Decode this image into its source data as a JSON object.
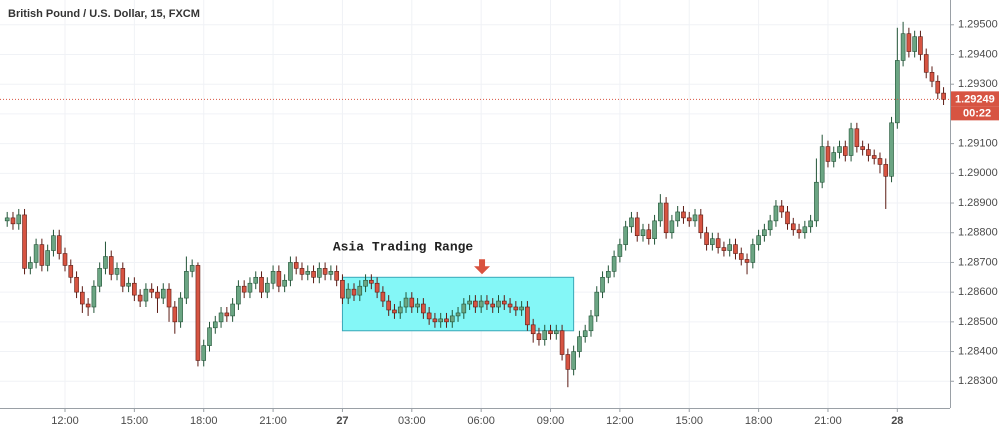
{
  "chart_data": {
    "type": "candlestick",
    "title": "British Pound / U.S. Dollar, 15, FXCM",
    "up_color": "#6ba583",
    "down_color": "#d75442",
    "up_wick": "#225437",
    "down_wick": "#5b1a13",
    "grid": true,
    "categories": [
      null,
      null,
      null,
      null,
      null,
      null,
      null,
      null,
      null,
      null,
      "12:00",
      null,
      null,
      null,
      null,
      null,
      null,
      null,
      null,
      null,
      null,
      null,
      "15:00",
      null,
      null,
      null,
      null,
      null,
      null,
      null,
      null,
      null,
      null,
      null,
      "18:00",
      null,
      null,
      null,
      null,
      null,
      null,
      null,
      null,
      null,
      null,
      null,
      "21:00",
      null,
      null,
      null,
      null,
      null,
      null,
      null,
      null,
      null,
      null,
      null,
      "27",
      null,
      null,
      null,
      null,
      null,
      null,
      null,
      null,
      null,
      null,
      null,
      "03:00",
      null,
      null,
      null,
      null,
      null,
      null,
      null,
      null,
      null,
      null,
      null,
      "06:00",
      null,
      null,
      null,
      null,
      null,
      null,
      null,
      null,
      null,
      null,
      null,
      "09:00",
      null,
      null,
      null,
      null,
      null,
      null,
      null,
      null,
      null,
      null,
      null,
      "12:00",
      null,
      null,
      null,
      null,
      null,
      null,
      null,
      null,
      null,
      null,
      null,
      "15:00",
      null,
      null,
      null,
      null,
      null,
      null,
      null,
      null,
      null,
      null,
      null,
      "18:00",
      null,
      null,
      null,
      null,
      null,
      null,
      null,
      null,
      null,
      null,
      null,
      "21:00",
      null,
      null,
      null,
      null,
      null,
      null,
      null,
      null,
      null,
      null,
      null,
      "28",
      null,
      null,
      null,
      null,
      null,
      null,
      null,
      null
    ],
    "open": [
      1.2884,
      1.2885,
      1.2883,
      1.2886,
      1.2868,
      1.287,
      1.2876,
      1.2869,
      1.2874,
      1.2879,
      1.2873,
      1.2869,
      1.2865,
      1.286,
      1.2856,
      1.2855,
      1.2862,
      1.2868,
      1.2872,
      1.2866,
      1.2868,
      1.2862,
      1.2863,
      1.2859,
      1.2857,
      1.2861,
      1.286,
      1.2858,
      1.2861,
      1.2855,
      1.285,
      1.2858,
      1.2867,
      1.2869,
      1.2837,
      1.2842,
      1.2848,
      1.285,
      1.2853,
      1.2852,
      1.2856,
      1.2862,
      1.286,
      1.2863,
      1.2865,
      1.286,
      1.2863,
      1.2867,
      1.2862,
      1.2864,
      1.287,
      1.2868,
      1.2866,
      1.2867,
      1.2865,
      1.2868,
      1.2866,
      1.2867,
      1.2864,
      1.2858,
      1.2861,
      1.2859,
      1.2862,
      1.2864,
      1.2863,
      1.286,
      1.2857,
      1.2854,
      1.2853,
      1.2855,
      1.2858,
      1.2855,
      1.2856,
      1.2853,
      1.2851,
      1.285,
      1.2851,
      1.285,
      1.2852,
      1.2853,
      1.2856,
      1.2857,
      1.2855,
      1.2857,
      1.2856,
      1.2855,
      1.2857,
      1.2856,
      1.2855,
      1.2854,
      1.2855,
      1.2849,
      1.2846,
      1.2844,
      1.2847,
      1.2846,
      1.2847,
      1.2839,
      1.2834,
      1.284,
      1.2845,
      1.2847,
      1.2852,
      1.286,
      1.2865,
      1.2867,
      1.2872,
      1.2876,
      1.2882,
      1.2885,
      1.2879,
      1.2881,
      1.2878,
      1.2884,
      1.289,
      1.288,
      1.2884,
      1.2887,
      1.2885,
      1.2884,
      1.2886,
      1.288,
      1.2876,
      1.2878,
      1.2875,
      1.2874,
      1.2876,
      1.2873,
      1.2871,
      1.287,
      1.2876,
      1.2879,
      1.2881,
      1.2884,
      1.2889,
      1.2887,
      1.2883,
      1.2881,
      1.288,
      1.2882,
      1.2884,
      1.2897,
      1.2909,
      1.2904,
      1.2907,
      1.2909,
      1.2906,
      1.2915,
      1.2909,
      1.2908,
      1.2906,
      1.2905,
      1.2903,
      1.2899,
      1.2917,
      1.2938,
      1.2947,
      1.2941,
      1.2946,
      1.294,
      1.2934,
      1.2931,
      1.2927
    ],
    "high": [
      1.2887,
      1.2887,
      1.2888,
      1.2888,
      1.2872,
      1.2878,
      1.2878,
      1.2876,
      1.2881,
      1.2881,
      1.2875,
      1.2871,
      1.2867,
      1.2862,
      1.2858,
      1.2864,
      1.287,
      1.2877,
      1.2874,
      1.287,
      1.287,
      1.2865,
      1.2865,
      1.2861,
      1.2863,
      1.2863,
      1.2862,
      1.2863,
      1.2863,
      1.2857,
      1.286,
      1.2872,
      1.2871,
      1.287,
      1.2844,
      1.285,
      1.2852,
      1.2855,
      1.2855,
      1.2858,
      1.2864,
      1.2864,
      1.2865,
      1.2867,
      1.2867,
      1.2865,
      1.2869,
      1.2869,
      1.2866,
      1.2872,
      1.2872,
      1.287,
      1.2869,
      1.2869,
      1.287,
      1.287,
      1.2869,
      1.2869,
      1.2866,
      1.2863,
      1.2863,
      1.2864,
      1.2866,
      1.2866,
      1.2865,
      1.2862,
      1.2859,
      1.2856,
      1.2857,
      1.286,
      1.286,
      1.2858,
      1.2858,
      1.2855,
      1.2853,
      1.2853,
      1.2853,
      1.2854,
      1.2855,
      1.2858,
      1.2859,
      1.2859,
      1.2859,
      1.2859,
      1.2858,
      1.2859,
      1.2859,
      1.2858,
      1.2857,
      1.2857,
      1.2857,
      1.2851,
      1.2848,
      1.2849,
      1.2849,
      1.2849,
      1.2849,
      1.2841,
      1.2842,
      1.2847,
      1.2849,
      1.2854,
      1.2862,
      1.2867,
      1.2869,
      1.2874,
      1.2878,
      1.2884,
      1.2887,
      1.2887,
      1.2883,
      1.2883,
      1.2886,
      1.2893,
      1.2892,
      1.2886,
      1.2889,
      1.2889,
      1.2887,
      1.2888,
      1.2888,
      1.2882,
      1.288,
      1.288,
      1.2877,
      1.2878,
      1.2878,
      1.2875,
      1.2873,
      1.2878,
      1.2881,
      1.2883,
      1.2886,
      1.2891,
      1.2891,
      1.2889,
      1.2885,
      1.2883,
      1.2884,
      1.2886,
      1.2905,
      1.2913,
      1.2911,
      1.2909,
      1.2911,
      1.2911,
      1.2917,
      1.2917,
      1.2911,
      1.291,
      1.2908,
      1.2907,
      1.2905,
      1.2919,
      1.2949,
      1.2951,
      1.2949,
      1.2948,
      1.2948,
      1.2942,
      1.2936,
      1.2933,
      1.2929
    ],
    "low": [
      1.2882,
      1.2881,
      1.2881,
      1.2866,
      1.2866,
      1.2868,
      1.2867,
      1.2867,
      1.2872,
      1.2871,
      1.2867,
      1.2863,
      1.2858,
      1.2853,
      1.2852,
      1.2853,
      1.286,
      1.2866,
      1.2864,
      1.2864,
      1.286,
      1.286,
      1.2857,
      1.2855,
      1.2855,
      1.2858,
      1.2853,
      1.2856,
      1.285,
      1.2846,
      1.2848,
      1.2856,
      1.2865,
      1.2835,
      1.2835,
      1.284,
      1.2846,
      1.2848,
      1.285,
      1.285,
      1.2854,
      1.2858,
      1.2858,
      1.2861,
      1.2858,
      1.2858,
      1.2861,
      1.286,
      1.286,
      1.2862,
      1.2866,
      1.2864,
      1.2864,
      1.2863,
      1.2863,
      1.2864,
      1.2864,
      1.2862,
      1.2856,
      1.2856,
      1.2857,
      1.2857,
      1.286,
      1.2861,
      1.2858,
      1.2855,
      1.2852,
      1.2851,
      1.2851,
      1.2853,
      1.2853,
      1.2853,
      1.2851,
      1.2849,
      1.2848,
      1.2848,
      1.2848,
      1.2848,
      1.285,
      1.2851,
      1.2854,
      1.2853,
      1.2853,
      1.2854,
      1.2853,
      1.2853,
      1.2854,
      1.2853,
      1.2852,
      1.2852,
      1.2847,
      1.2843,
      1.2842,
      1.2842,
      1.2844,
      1.2844,
      1.2837,
      1.2828,
      1.2832,
      1.2838,
      1.2843,
      1.2845,
      1.285,
      1.2858,
      1.2863,
      1.2865,
      1.287,
      1.2874,
      1.288,
      1.2877,
      1.2877,
      1.2876,
      1.2876,
      1.2882,
      1.2878,
      1.2878,
      1.2882,
      1.2883,
      1.2882,
      1.2882,
      1.2878,
      1.2874,
      1.2874,
      1.2873,
      1.2872,
      1.2872,
      1.2871,
      1.2869,
      1.2866,
      1.2868,
      1.2874,
      1.2877,
      1.2879,
      1.2882,
      1.2885,
      1.2881,
      1.2879,
      1.2878,
      1.2878,
      1.288,
      1.2882,
      1.2895,
      1.2902,
      1.2902,
      1.2905,
      1.2904,
      1.2904,
      1.2907,
      1.2906,
      1.2904,
      1.2903,
      1.29,
      1.2888,
      1.2897,
      1.2915,
      1.2936,
      1.2939,
      1.2939,
      1.2938,
      1.2932,
      1.2929,
      1.2925,
      1.2923
    ],
    "close": [
      1.2885,
      1.2883,
      1.2886,
      1.2868,
      1.287,
      1.2876,
      1.2869,
      1.2874,
      1.2879,
      1.2873,
      1.2869,
      1.2865,
      1.286,
      1.2856,
      1.2855,
      1.2862,
      1.2868,
      1.2872,
      1.2866,
      1.2868,
      1.2862,
      1.2863,
      1.2859,
      1.2857,
      1.2861,
      1.286,
      1.2858,
      1.2861,
      1.2855,
      1.285,
      1.2858,
      1.2867,
      1.2869,
      1.2837,
      1.2842,
      1.2848,
      1.285,
      1.2853,
      1.2852,
      1.2856,
      1.2862,
      1.286,
      1.2863,
      1.2865,
      1.286,
      1.2863,
      1.2867,
      1.2862,
      1.2864,
      1.287,
      1.2868,
      1.2866,
      1.2867,
      1.2865,
      1.2868,
      1.2866,
      1.2867,
      1.2864,
      1.2858,
      1.2861,
      1.2859,
      1.2862,
      1.2864,
      1.2863,
      1.286,
      1.2857,
      1.2854,
      1.2853,
      1.2855,
      1.2858,
      1.2855,
      1.2856,
      1.2853,
      1.2851,
      1.285,
      1.2851,
      1.285,
      1.2852,
      1.2853,
      1.2856,
      1.2857,
      1.2855,
      1.2857,
      1.2856,
      1.2855,
      1.2857,
      1.2856,
      1.2855,
      1.2854,
      1.2855,
      1.2849,
      1.2846,
      1.2844,
      1.2847,
      1.2846,
      1.2847,
      1.2839,
      1.2834,
      1.284,
      1.2845,
      1.2847,
      1.2852,
      1.286,
      1.2865,
      1.2867,
      1.2872,
      1.2876,
      1.2882,
      1.2885,
      1.2879,
      1.2881,
      1.2878,
      1.2884,
      1.289,
      1.288,
      1.2884,
      1.2887,
      1.2885,
      1.2884,
      1.2886,
      1.288,
      1.2876,
      1.2878,
      1.2875,
      1.2874,
      1.2876,
      1.2873,
      1.2871,
      1.287,
      1.2876,
      1.2879,
      1.2881,
      1.2884,
      1.2889,
      1.2887,
      1.2883,
      1.2881,
      1.288,
      1.2882,
      1.2884,
      1.2897,
      1.2909,
      1.2904,
      1.2907,
      1.2909,
      1.2906,
      1.2915,
      1.2909,
      1.2908,
      1.2906,
      1.2905,
      1.2903,
      1.2899,
      1.2917,
      1.2938,
      1.2947,
      1.2941,
      1.2946,
      1.294,
      1.2934,
      1.2931,
      1.2927,
      1.29249
    ],
    "ylim": [
      1.2821,
      1.2957
    ],
    "yticks": [
      {
        "value": 1.283,
        "label": "1.28300"
      },
      {
        "value": 1.284,
        "label": "1.28400"
      },
      {
        "value": 1.285,
        "label": "1.28500"
      },
      {
        "value": 1.286,
        "label": "1.28600"
      },
      {
        "value": 1.287,
        "label": "1.28700"
      },
      {
        "value": 1.288,
        "label": "1.28800"
      },
      {
        "value": 1.289,
        "label": "1.28900"
      },
      {
        "value": 1.29,
        "label": "1.29000"
      },
      {
        "value": 1.291,
        "label": "1.29100"
      },
      {
        "value": 1.292,
        "label": "1.29200"
      },
      {
        "value": 1.293,
        "label": "1.29300"
      },
      {
        "value": 1.294,
        "label": "1.29400"
      },
      {
        "value": 1.295,
        "label": "1.29500"
      }
    ],
    "last_price": 1.29249,
    "countdown": "00:22",
    "range_box": {
      "text": "Asia Trading Range",
      "start": 58,
      "end": 98,
      "low": 1.2847,
      "high": 1.2865,
      "color": "#84f7f7"
    }
  }
}
